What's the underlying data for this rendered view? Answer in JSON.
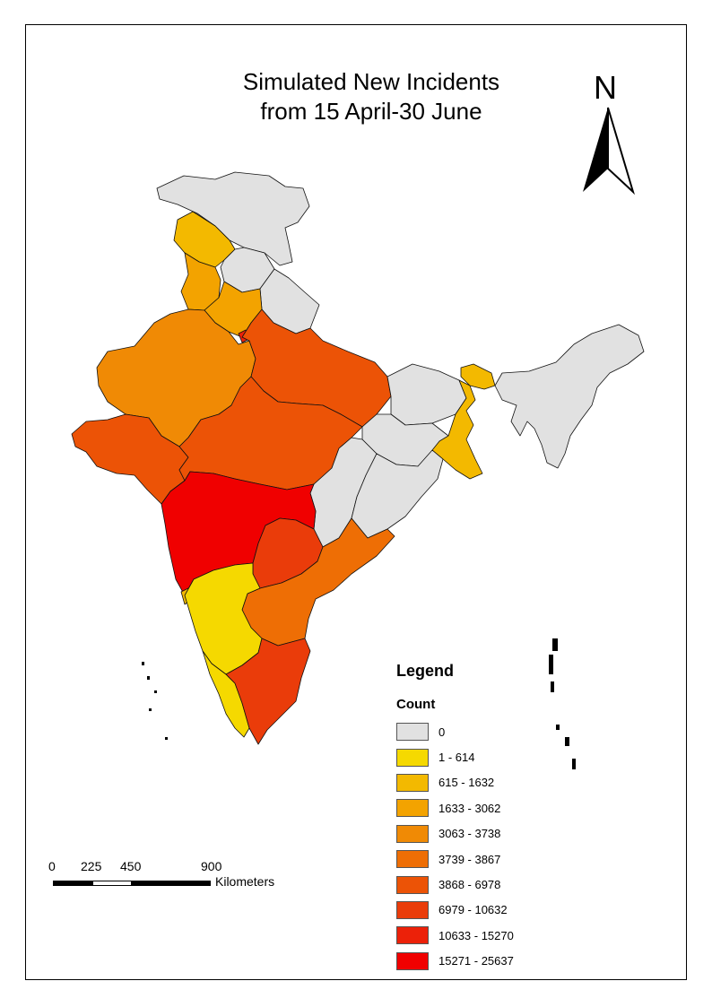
{
  "title": {
    "line1": "Simulated New Incidents",
    "line2": "from 15 April-30 June"
  },
  "north_arrow": {
    "label": "N",
    "icon": "north-arrow-icon"
  },
  "legend": {
    "title": "Legend",
    "field": "Count",
    "classes": [
      {
        "label": "0",
        "color": "#e1e1e1"
      },
      {
        "label": "1 - 614",
        "color": "#f5d900"
      },
      {
        "label": "615 - 1632",
        "color": "#f3b900"
      },
      {
        "label": "1633 - 3062",
        "color": "#f3a300"
      },
      {
        "label": "3063 - 3738",
        "color": "#f08a05"
      },
      {
        "label": "3739 - 3867",
        "color": "#ee6e05"
      },
      {
        "label": "3868 - 6978",
        "color": "#ec5306"
      },
      {
        "label": "6979 - 10632",
        "color": "#ea3c0a"
      },
      {
        "label": "10633 - 15270",
        "color": "#ec2109"
      },
      {
        "label": "15271 - 25637",
        "color": "#f00000"
      }
    ]
  },
  "scale": {
    "ticks": [
      "0",
      "225",
      "450",
      "900"
    ],
    "units": "Kilometers"
  }
}
